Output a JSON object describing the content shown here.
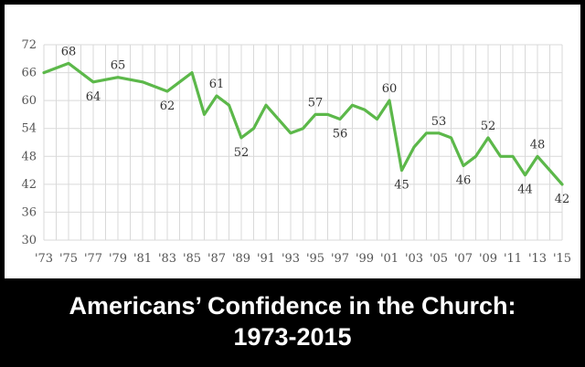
{
  "caption": {
    "line1": "Americans’ Confidence in the Church:",
    "line2": "1973-2015"
  },
  "chart_data": {
    "type": "line",
    "title": "Americans’ Confidence in the Church: 1973-2015",
    "xlabel": "",
    "ylabel": "",
    "ylim": [
      30,
      72
    ],
    "y_ticks": [
      30,
      36,
      42,
      48,
      54,
      60,
      66,
      72
    ],
    "x_range": [
      1973,
      2015
    ],
    "x_ticks": [
      "'73",
      "'75",
      "'77",
      "'79",
      "'81",
      "'83",
      "'85",
      "'87",
      "'89",
      "'91",
      "'93",
      "'95",
      "'97",
      "'99",
      "'01",
      "'03",
      "'05",
      "'07",
      "'09",
      "'11",
      "'13",
      "'15"
    ],
    "grid": true,
    "line_color": "#5cb84a",
    "series": [
      {
        "x": [
          1973,
          1975,
          1977,
          1979,
          1981,
          1983,
          1984,
          1985,
          1986,
          1987,
          1988,
          1989,
          1990,
          1991,
          1993,
          1994,
          1995,
          1996,
          1997,
          1998,
          1999,
          2000,
          2001,
          2002,
          2003,
          2004,
          2005,
          2006,
          2007,
          2008,
          2009,
          2010,
          2011,
          2012,
          2013,
          2014,
          2015
        ],
        "values": [
          66,
          68,
          64,
          65,
          64,
          62,
          64,
          66,
          57,
          61,
          59,
          52,
          54,
          59,
          53,
          54,
          57,
          57,
          56,
          59,
          58,
          56,
          60,
          45,
          50,
          53,
          53,
          52,
          46,
          48,
          52,
          48,
          48,
          44,
          48,
          45,
          42
        ]
      }
    ],
    "annotations": [
      {
        "x": 1975,
        "y": 68,
        "text": "68",
        "pos": "above"
      },
      {
        "x": 1977,
        "y": 64,
        "text": "64",
        "pos": "below"
      },
      {
        "x": 1979,
        "y": 65,
        "text": "65",
        "pos": "above"
      },
      {
        "x": 1983,
        "y": 62,
        "text": "62",
        "pos": "below"
      },
      {
        "x": 1987,
        "y": 61,
        "text": "61",
        "pos": "above"
      },
      {
        "x": 1989,
        "y": 52,
        "text": "52",
        "pos": "below"
      },
      {
        "x": 1995,
        "y": 57,
        "text": "57",
        "pos": "above"
      },
      {
        "x": 1997,
        "y": 56,
        "text": "56",
        "pos": "below"
      },
      {
        "x": 2001,
        "y": 60,
        "text": "60",
        "pos": "above"
      },
      {
        "x": 2002,
        "y": 45,
        "text": "45",
        "pos": "below"
      },
      {
        "x": 2005,
        "y": 53,
        "text": "53",
        "pos": "above"
      },
      {
        "x": 2007,
        "y": 46,
        "text": "46",
        "pos": "below"
      },
      {
        "x": 2009,
        "y": 52,
        "text": "52",
        "pos": "above"
      },
      {
        "x": 2012,
        "y": 44,
        "text": "44",
        "pos": "below"
      },
      {
        "x": 2013,
        "y": 48,
        "text": "48",
        "pos": "above"
      },
      {
        "x": 2015,
        "y": 42,
        "text": "42",
        "pos": "below"
      }
    ]
  }
}
